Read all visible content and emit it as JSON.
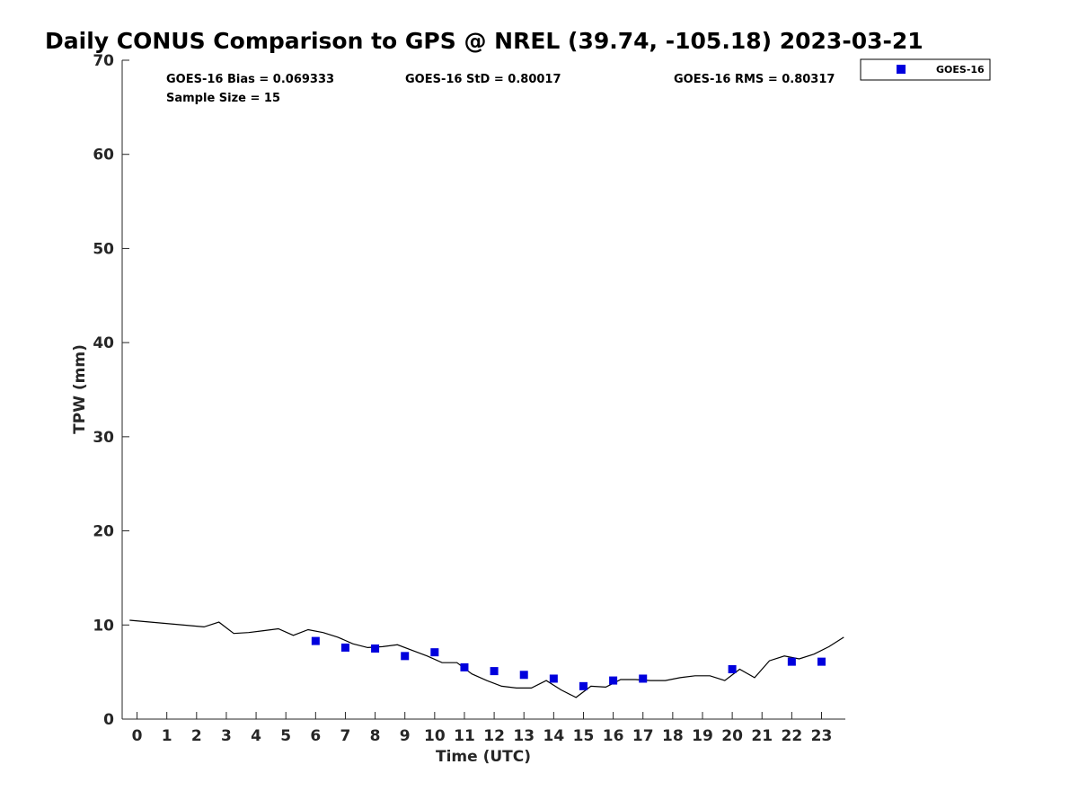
{
  "chart_data": {
    "type": "scatter",
    "title": "Daily CONUS Comparison to GPS @ NREL (39.74, -105.18) 2023-03-21",
    "xlabel": "Time (UTC)",
    "ylabel": "TPW (mm)",
    "xlim": [
      -0.5,
      23.8
    ],
    "ylim": [
      0,
      70
    ],
    "xticks": [
      "0",
      "1",
      "2",
      "3",
      "4",
      "5",
      "6",
      "7",
      "8",
      "9",
      "10",
      "11",
      "12",
      "13",
      "14",
      "15",
      "16",
      "17",
      "18",
      "19",
      "20",
      "21",
      "22",
      "23"
    ],
    "yticks": [
      "0",
      "10",
      "20",
      "30",
      "40",
      "50",
      "60",
      "70"
    ],
    "grid": false,
    "legend": {
      "placement": "top-right",
      "entries": [
        "GOES-16"
      ]
    },
    "stats": {
      "bias": "GOES-16 Bias = 0.069333",
      "std": "GOES-16 StD = 0.80017",
      "rms": "GOES-16 RMS = 0.80317",
      "sample": "Sample Size = 15"
    },
    "colors": {
      "goes": "#0000dd",
      "gps": "#000000"
    },
    "series": [
      {
        "name": "GOES-16",
        "marker": "square",
        "x": [
          6,
          7,
          8,
          9,
          10,
          11,
          12,
          13,
          14,
          15,
          16,
          17,
          20,
          22,
          23
        ],
        "y": [
          8.3,
          7.6,
          7.5,
          6.7,
          7.1,
          5.5,
          5.1,
          4.7,
          4.3,
          3.5,
          4.1,
          4.3,
          5.3,
          6.1,
          6.1
        ]
      },
      {
        "marker": "line",
        "x": [
          -0.25,
          2.25,
          2.75,
          3.25,
          3.75,
          4.25,
          4.75,
          5.25,
          5.75,
          6.25,
          6.75,
          7.25,
          7.75,
          8.25,
          8.75,
          9.25,
          9.75,
          10.25,
          10.75,
          11.25,
          11.75,
          12.25,
          12.75,
          13.25,
          13.75,
          14.25,
          14.75,
          15.25,
          15.75,
          16.25,
          16.75,
          17.25,
          17.75,
          18.25,
          18.75,
          19.25,
          19.75,
          20.25,
          20.75,
          21.25,
          21.75,
          22.25,
          22.75,
          23.25,
          23.75
        ],
        "y": [
          10.5,
          9.8,
          10.3,
          9.1,
          9.2,
          9.4,
          9.6,
          8.9,
          9.5,
          9.2,
          8.7,
          8.0,
          7.6,
          7.7,
          7.9,
          7.3,
          6.7,
          6.0,
          6.0,
          4.8,
          4.1,
          3.5,
          3.3,
          3.3,
          4.1,
          3.1,
          2.3,
          3.5,
          3.4,
          4.2,
          4.2,
          4.1,
          4.1,
          4.4,
          4.6,
          4.6,
          4.1,
          5.3,
          4.4,
          6.2,
          6.7,
          6.4,
          6.9,
          7.7,
          8.7
        ]
      }
    ]
  }
}
